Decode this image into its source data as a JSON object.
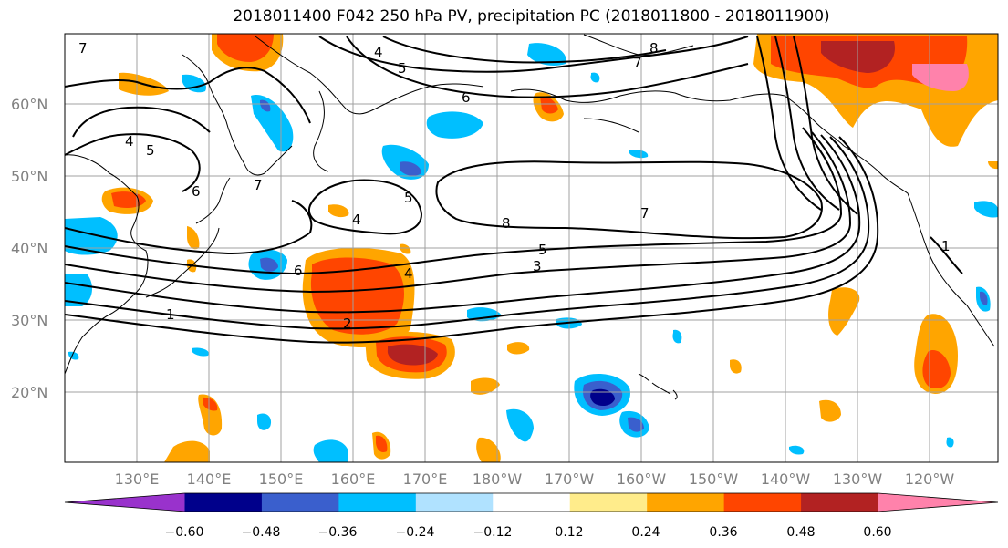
{
  "title": "2018011400 F042 250 hPa PV, precipitation PC (2018011800 - 2018011900)",
  "lat_labels": [
    "60°N",
    "50°N",
    "40°N",
    "30°N",
    "20°N"
  ],
  "lon_labels": [
    "130°E",
    "140°E",
    "150°E",
    "160°E",
    "170°E",
    "180°W",
    "170°W",
    "160°W",
    "150°W",
    "140°W",
    "130°W",
    "120°W"
  ],
  "colorbar": {
    "ticks": [
      "−0.60",
      "−0.48",
      "−0.36",
      "−0.24",
      "−0.12",
      "0.12",
      "0.24",
      "0.36",
      "0.48",
      "0.60"
    ],
    "colors": [
      "#9932CC",
      "#00008B",
      "#3A5FCD",
      "#00BFFF",
      "#B0E2FF",
      "#FFFFFF",
      "#FFEC8B",
      "#FFA500",
      "#FF4500",
      "#B22222",
      "#FF82AB"
    ]
  },
  "contour_labels": [
    "7",
    "4",
    "5",
    "6",
    "7",
    "8",
    "4",
    "5",
    "6",
    "7",
    "5",
    "4",
    "7",
    "8",
    "5",
    "3",
    "4",
    "2",
    "1",
    "6",
    "1"
  ]
}
